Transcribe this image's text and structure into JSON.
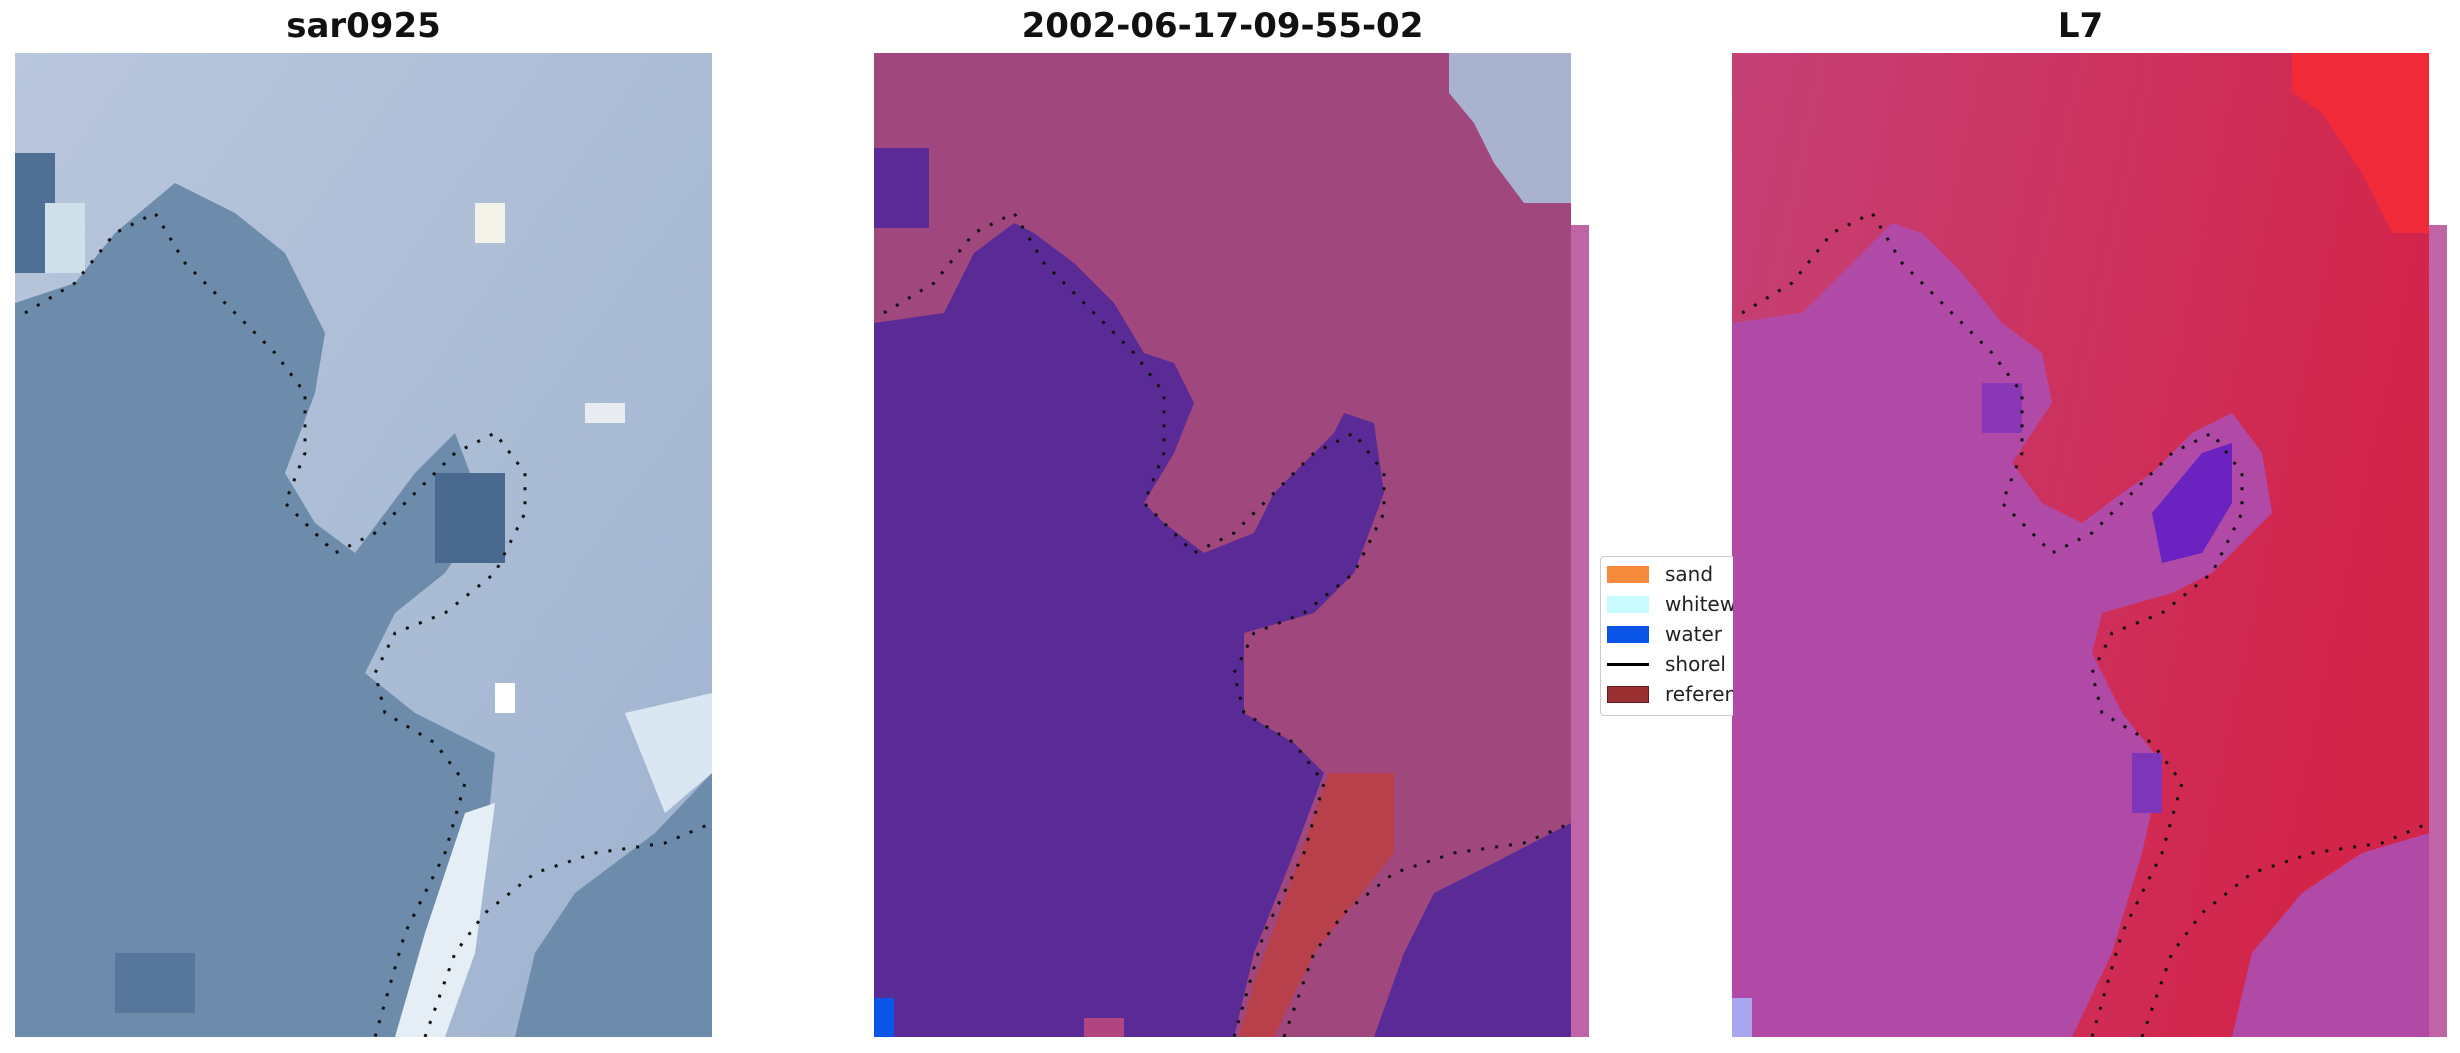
{
  "panels": [
    {
      "title": "sar0925",
      "description_key": "rgb-image"
    },
    {
      "title": "2002-06-17-09-55-02",
      "description_key": "classified-image"
    },
    {
      "title": "L7",
      "description_key": "index-image"
    }
  ],
  "legend": {
    "items": [
      {
        "label": "sand",
        "color": "#f58b3a"
      },
      {
        "label": "whitew",
        "color": "#c8fbff"
      },
      {
        "label": "water",
        "color": "#0a55e8"
      },
      {
        "label": "shorel",
        "color": "#000000"
      },
      {
        "label": "referen",
        "color": "#9b3033"
      }
    ]
  },
  "colors": {
    "water_class": "#5a2a96",
    "land_overlay": "#a0477e",
    "reference_band": "#b8404a",
    "shoreline_dots": "#111111"
  }
}
